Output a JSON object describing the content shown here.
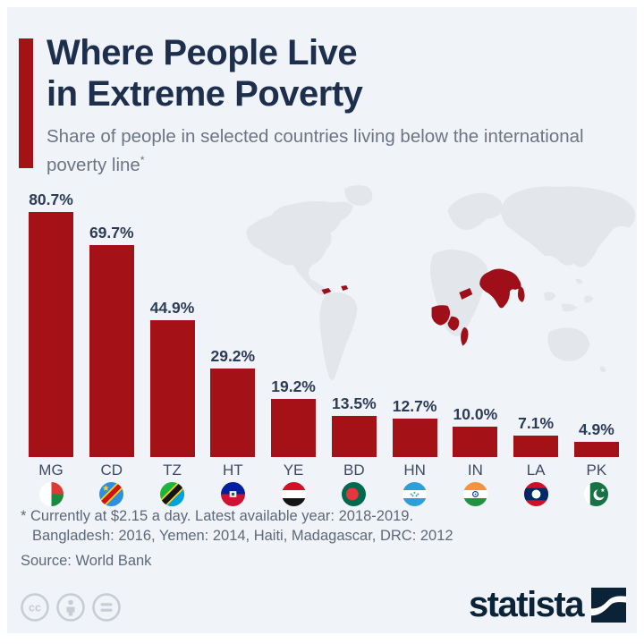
{
  "header": {
    "title_line1": "Where People Live",
    "title_line2": "in Extreme Poverty",
    "subtitle": "Share of people in selected countries living below the international poverty line",
    "subtitle_footnote_marker": "*"
  },
  "chart_data": {
    "type": "bar",
    "title": "Where People Live in Extreme Poverty",
    "categories": [
      "MG",
      "CD",
      "TZ",
      "HT",
      "YE",
      "BD",
      "HN",
      "IN",
      "LA",
      "PK"
    ],
    "country_names": [
      "Madagascar",
      "DR Congo",
      "Tanzania",
      "Haiti",
      "Yemen",
      "Bangladesh",
      "Honduras",
      "India",
      "Laos",
      "Pakistan"
    ],
    "values": [
      80.7,
      69.7,
      44.9,
      29.2,
      19.2,
      13.5,
      12.7,
      10.0,
      7.1,
      4.9
    ],
    "value_labels": [
      "80.7%",
      "69.7%",
      "44.9%",
      "29.2%",
      "19.2%",
      "13.5%",
      "12.7%",
      "10.0%",
      "7.1%",
      "4.9%"
    ],
    "unit": "%",
    "xlabel": "",
    "ylabel": "",
    "ylim": [
      0,
      85
    ],
    "grid": false,
    "legend": false,
    "bar_color": "#a41117"
  },
  "map": {
    "highlighted_countries": [
      "Madagascar",
      "DR Congo",
      "Tanzania",
      "Haiti",
      "Yemen",
      "Bangladesh",
      "Honduras",
      "India",
      "Laos",
      "Pakistan"
    ],
    "highlight_color": "#9e0f19",
    "land_color": "#e3e6ea"
  },
  "footnotes": {
    "line1": "* Currently at $2.15 a day. Latest available year: 2018-2019.",
    "line2": "Bangladesh: 2016, Yemen: 2014, Haiti, Madagascar, DRC: 2012",
    "source": "Source: World Bank"
  },
  "branding": {
    "wordmark": "statista"
  },
  "license": {
    "icons": [
      "cc-icon",
      "attribution-person-icon",
      "equals-icon"
    ]
  },
  "colors": {
    "background": "#f0f3f8",
    "accent_red": "#a41117",
    "title_navy": "#1e2f4d",
    "subtitle_gray": "#6b7685",
    "footnote_gray": "#5d6979",
    "brand_navy": "#0b2336"
  }
}
